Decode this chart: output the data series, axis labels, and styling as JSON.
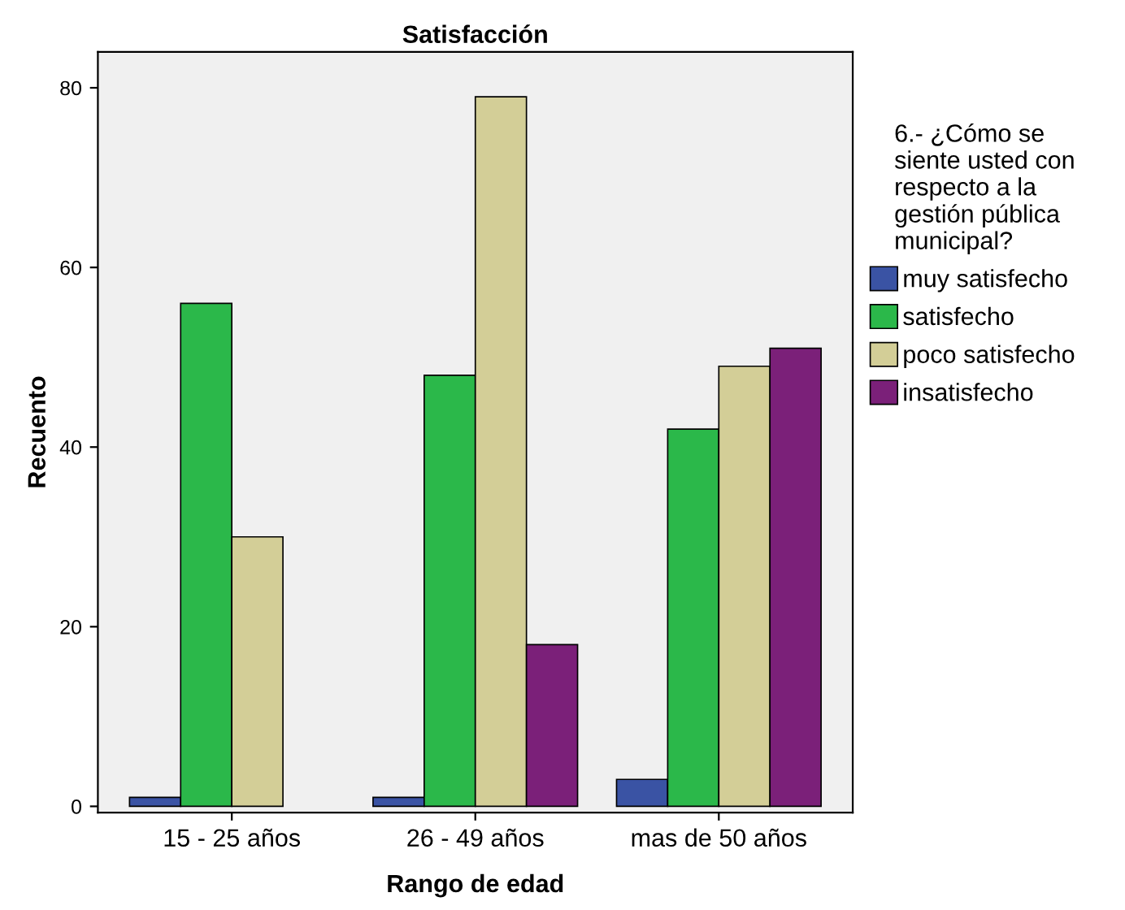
{
  "chart_data": {
    "type": "bar",
    "title": "Satisfacción",
    "xlabel": "Rango de edad",
    "ylabel": "Recuento",
    "legend_title": "6.- ¿Cómo se\nsiente usted con\nrespecto a la\ngestión pública\nmunicipal?",
    "categories": [
      "15 - 25 años",
      "26 - 49 años",
      "mas de 50 años"
    ],
    "series": [
      {
        "name": "muy satisfecho",
        "color": "#3a53a4",
        "values": [
          1,
          1,
          3
        ]
      },
      {
        "name": "satisfecho",
        "color": "#2bb84a",
        "values": [
          56,
          48,
          42
        ]
      },
      {
        "name": "poco satisfecho",
        "color": "#d3ce97",
        "values": [
          30,
          79,
          49
        ]
      },
      {
        "name": "insatisfecho",
        "color": "#7b2079",
        "values": [
          null,
          18,
          51
        ]
      }
    ],
    "ylim": [
      -0.7,
      84
    ],
    "yticks": [
      0,
      20,
      40,
      60,
      80
    ],
    "grid": false,
    "legend": "right"
  }
}
